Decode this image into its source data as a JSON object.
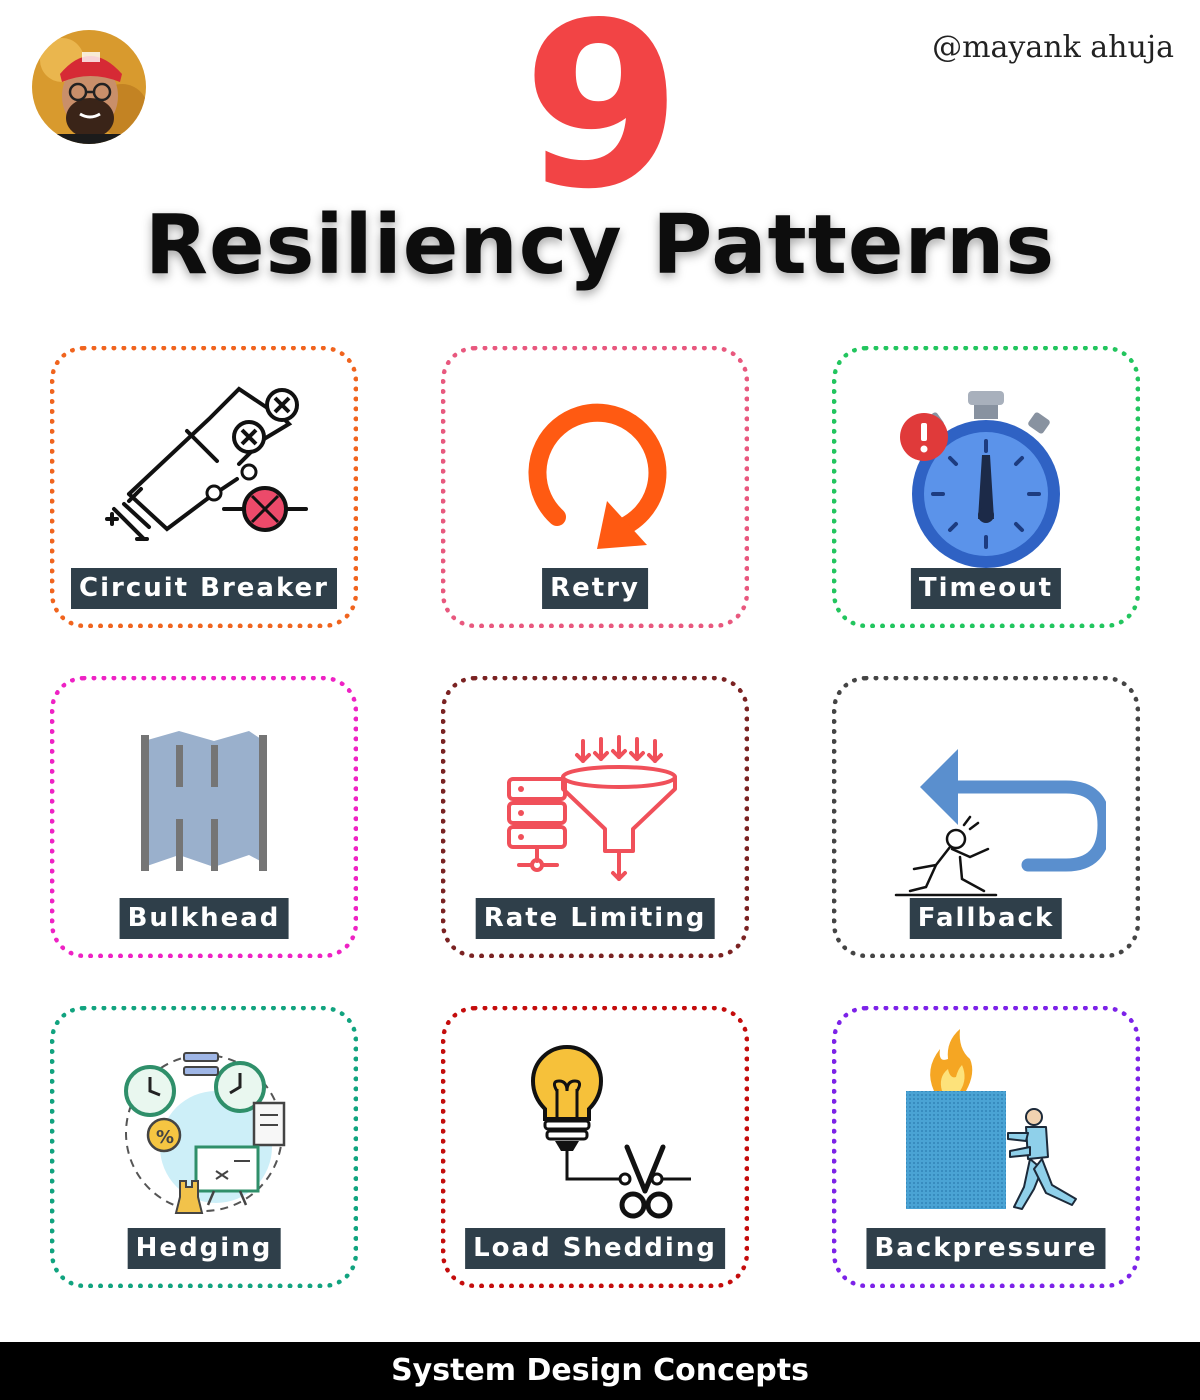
{
  "header": {
    "handle": "@mayank ahuja",
    "number": "9",
    "title": "Resiliency Patterns"
  },
  "cards": [
    {
      "label": "Circuit Breaker",
      "border_color": "#f0641e",
      "icon": "circuit-icon"
    },
    {
      "label": "Retry",
      "border_color": "#e8587e",
      "icon": "retry-icon"
    },
    {
      "label": "Timeout",
      "border_color": "#22c55e",
      "icon": "stopwatch-icon"
    },
    {
      "label": "Bulkhead",
      "border_color": "#ee22c4",
      "icon": "bulkhead-icon"
    },
    {
      "label": "Rate Limiting",
      "border_color": "#7a2222",
      "icon": "funnel-server-icon"
    },
    {
      "label": "Fallback",
      "border_color": "#444444",
      "icon": "fallback-arrow-icon"
    },
    {
      "label": "Hedging",
      "border_color": "#11a37f",
      "icon": "hedging-icon"
    },
    {
      "label": "Load Shedding",
      "border_color": "#c40c0c",
      "icon": "bulb-scissors-icon"
    },
    {
      "label": "Backpressure",
      "border_color": "#7c22e8",
      "icon": "pushing-box-icon"
    }
  ],
  "footer": {
    "text": "System Design Concepts"
  }
}
